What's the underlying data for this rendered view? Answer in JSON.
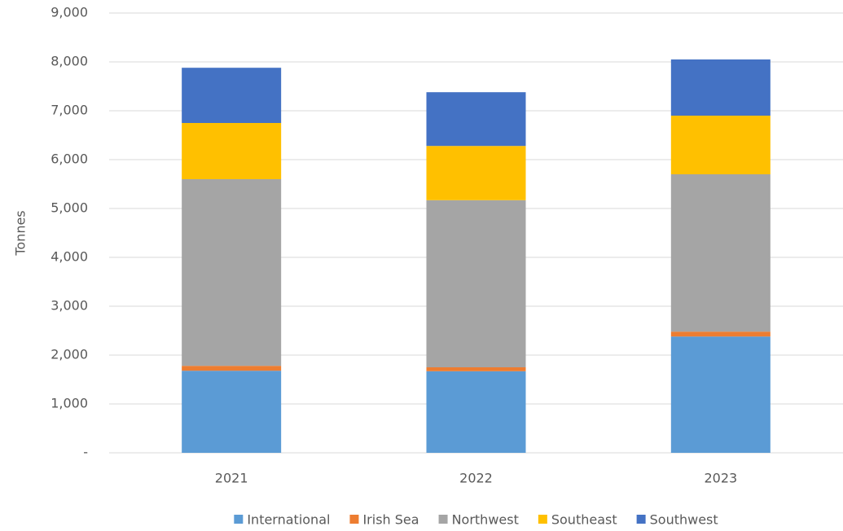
{
  "chart_data": {
    "type": "stacked_bar",
    "y_label": "Tonnes",
    "categories": [
      "2021",
      "2022",
      "2023"
    ],
    "series": [
      {
        "name": "International",
        "color": "#5b9bd5",
        "values": [
          1680,
          1670,
          2380
        ]
      },
      {
        "name": "Irish Sea",
        "color": "#ed7d31",
        "values": [
          100,
          80,
          100
        ]
      },
      {
        "name": "Northwest",
        "color": "#a5a5a5",
        "values": [
          3820,
          3420,
          3220
        ]
      },
      {
        "name": "Southeast",
        "color": "#ffc000",
        "values": [
          1150,
          1110,
          1200
        ]
      },
      {
        "name": "Southwest",
        "color": "#4472c4",
        "values": [
          1130,
          1100,
          1150
        ]
      }
    ],
    "ylim": [
      0,
      9000
    ],
    "yticks": [
      {
        "value": 0,
        "label": "-"
      },
      {
        "value": 1000,
        "label": "1,000"
      },
      {
        "value": 2000,
        "label": "2,000"
      },
      {
        "value": 3000,
        "label": "3,000"
      },
      {
        "value": 4000,
        "label": "4,000"
      },
      {
        "value": 5000,
        "label": "5,000"
      },
      {
        "value": 6000,
        "label": "6,000"
      },
      {
        "value": 7000,
        "label": "7,000"
      },
      {
        "value": 8000,
        "label": "8,000"
      },
      {
        "value": 9000,
        "label": "9,000"
      }
    ],
    "grid": true,
    "legend": "bottom"
  }
}
